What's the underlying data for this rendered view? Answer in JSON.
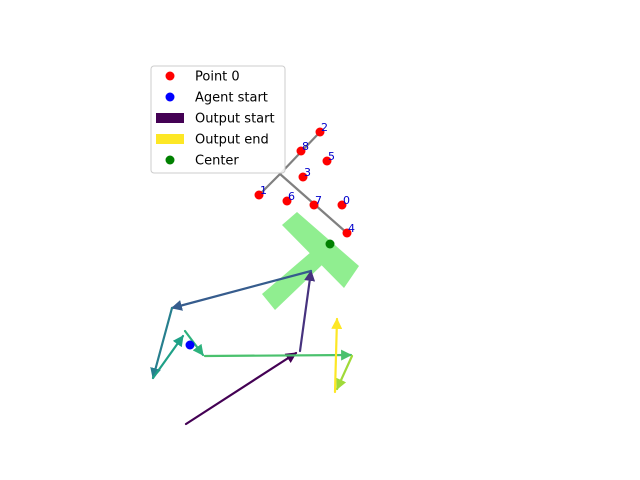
{
  "chart_data": {
    "type": "scatter",
    "title": "",
    "xlabel": "",
    "ylabel": "",
    "axes_visible": false,
    "xlim": [
      0,
      640
    ],
    "ylim": [
      480,
      0
    ],
    "legend": {
      "placement": "top-left",
      "entries": [
        {
          "label": "Point 0",
          "marker": "dot",
          "color": "#ff0000"
        },
        {
          "label": "Agent start",
          "marker": "dot",
          "color": "#0000ff"
        },
        {
          "label": "Output start",
          "marker": "patch",
          "color": "#440154"
        },
        {
          "label": "Output end",
          "marker": "patch",
          "color": "#fde725"
        },
        {
          "label": "Center",
          "marker": "dot",
          "color": "#008000"
        }
      ]
    },
    "points": [
      {
        "label": "0",
        "x": 342,
        "y": 205
      },
      {
        "label": "1",
        "x": 259,
        "y": 195
      },
      {
        "label": "2",
        "x": 320,
        "y": 132
      },
      {
        "label": "3",
        "x": 303,
        "y": 177
      },
      {
        "label": "4",
        "x": 347,
        "y": 233
      },
      {
        "label": "5",
        "x": 327,
        "y": 161
      },
      {
        "label": "6",
        "x": 287,
        "y": 201
      },
      {
        "label": "7",
        "x": 314,
        "y": 205
      },
      {
        "label": "8",
        "x": 301,
        "y": 151
      }
    ],
    "point_color": "#ff0000",
    "label_color": "#0000cc",
    "skeleton": {
      "color": "#808080",
      "polylines": [
        [
          [
            259,
            195
          ],
          [
            280,
            174
          ],
          [
            320,
            132
          ]
        ],
        [
          [
            280,
            174
          ],
          [
            347,
            233
          ]
        ]
      ]
    },
    "center": {
      "x": 330,
      "y": 244,
      "color": "#008000"
    },
    "agent_start": {
      "x": 190,
      "y": 345,
      "color": "#0000ff"
    },
    "region": {
      "color": "#90ee90",
      "polygons": [
        [
          [
            282,
            225
          ],
          [
            297,
            212
          ],
          [
            359,
            266
          ],
          [
            344,
            288
          ]
        ],
        [
          [
            262,
            294
          ],
          [
            311,
            252
          ],
          [
            322,
            265
          ],
          [
            275,
            310
          ]
        ]
      ]
    },
    "trajectory": {
      "segments": [
        {
          "from": [
            186,
            424
          ],
          "to": [
            296,
            353
          ],
          "color": "#440154"
        },
        {
          "from": [
            300,
            351
          ],
          "to": [
            311,
            271
          ],
          "color": "#46327e"
        },
        {
          "from": [
            311,
            271
          ],
          "to": [
            172,
            308
          ],
          "color": "#365c8d"
        },
        {
          "from": [
            172,
            308
          ],
          "to": [
            153,
            378
          ],
          "color": "#277f8e"
        },
        {
          "from": [
            153,
            378
          ],
          "to": [
            183,
            336
          ],
          "color": "#1fa187"
        },
        {
          "from": [
            185,
            331
          ],
          "to": [
            203,
            355
          ],
          "color": "#2db27d"
        },
        {
          "from": [
            205,
            356
          ],
          "to": [
            351,
            355
          ],
          "color": "#4ac16d"
        },
        {
          "from": [
            352,
            356
          ],
          "to": [
            337,
            389
          ],
          "color": "#a0da39"
        },
        {
          "from": [
            335,
            392
          ],
          "to": [
            337,
            319
          ],
          "color": "#fde725"
        }
      ]
    }
  }
}
